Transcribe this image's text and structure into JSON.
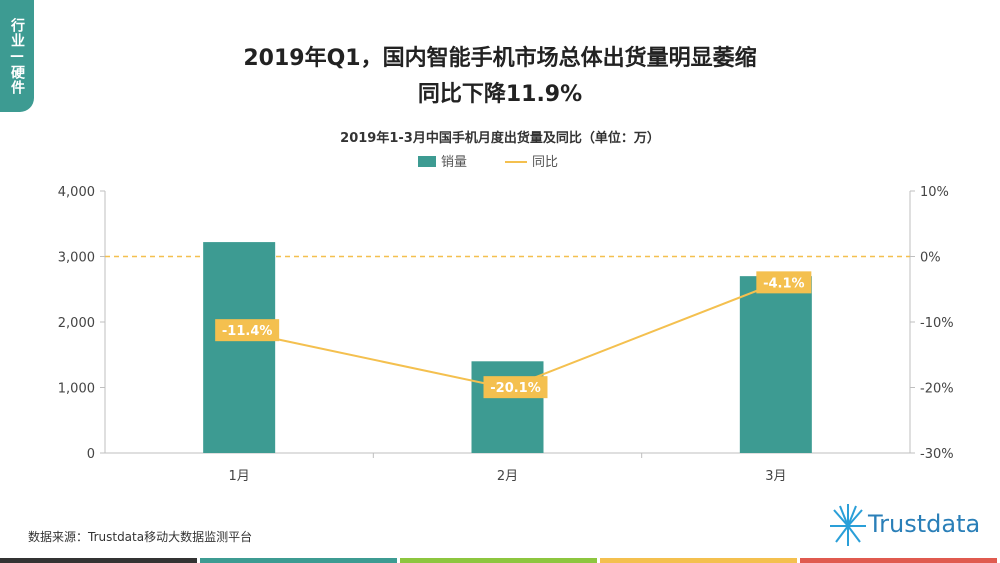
{
  "side_tab": "行业—硬件",
  "title_line1": "2019年Q1，国内智能手机市场总体出货量明显萎缩",
  "title_line2": "同比下降11.9%",
  "source": "数据来源：Trustdata移动大数据监测平台",
  "logo_text": "Trustdata",
  "colors": {
    "bar": "#3d9b92",
    "line": "#f4c04f",
    "label_bg": "#f4c04f",
    "tab": "#3d9b92",
    "logo": "#2a7fb8"
  },
  "bottom_bar_colors": [
    "#333333",
    "#3d9b92",
    "#8dc63f",
    "#f4c04f",
    "#e05a4f"
  ],
  "chart_data": {
    "type": "bar",
    "title": "2019年1-3月中国手机月度出货量及同比（单位：万）",
    "categories": [
      "1月",
      "2月",
      "3月"
    ],
    "series": [
      {
        "name": "销量",
        "type": "bar",
        "axis": "left",
        "values": [
          3220,
          1400,
          2700
        ]
      },
      {
        "name": "同比",
        "type": "line",
        "axis": "right",
        "values": [
          -11.4,
          -20.1,
          -4.1
        ],
        "labels": [
          "-11.4%",
          "-20.1%",
          "-4.1%"
        ]
      }
    ],
    "y_left": {
      "min": 0,
      "max": 4000,
      "ticks": [
        "0",
        "1,000",
        "2,000",
        "3,000",
        "4,000"
      ]
    },
    "y_right": {
      "min": -30,
      "max": 10,
      "ticks": [
        "-30%",
        "-20%",
        "-10%",
        "0%",
        "10%"
      ]
    },
    "reference_line_right": 0,
    "legend_position": "top-center"
  }
}
